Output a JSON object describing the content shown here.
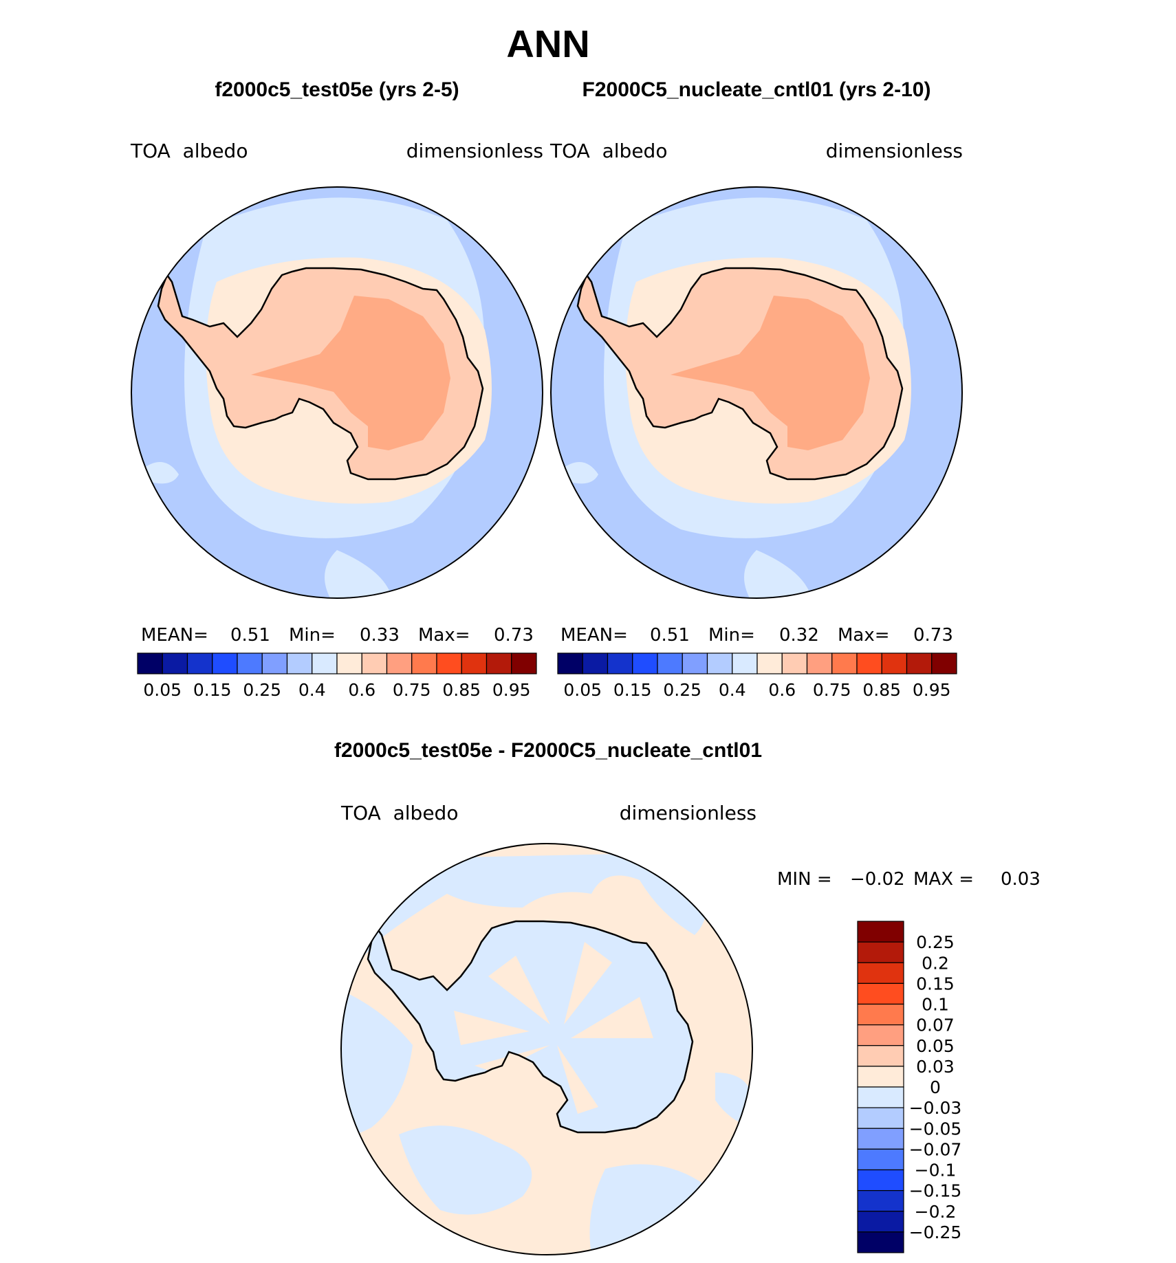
{
  "season": "ANN",
  "panels": [
    {
      "title": "f2000c5_test05e (yrs 2-5)",
      "variable": "TOA  albedo",
      "units": "dimensionless",
      "stats": {
        "mean_label": "MEAN=",
        "mean": "0.51",
        "min_label": "Min=",
        "min": "0.33",
        "max_label": "Max=",
        "max": "0.73"
      }
    },
    {
      "title": "F2000C5_nucleate_cntl01 (yrs 2-10)",
      "variable": "TOA  albedo",
      "units": "dimensionless",
      "stats": {
        "mean_label": "MEAN=",
        "mean": "0.51",
        "min_label": "Min=",
        "min": "0.32",
        "max_label": "Max=",
        "max": "0.73"
      }
    }
  ],
  "abs_colorbar": {
    "colors": [
      "#000066",
      "#0a1aa3",
      "#1433cc",
      "#1f4dff",
      "#4d7aff",
      "#809fff",
      "#b3ccff",
      "#d9eaff",
      "#ffebd9",
      "#ffccb3",
      "#ff9f80",
      "#ff7a4d",
      "#ff4d1f",
      "#e0330f",
      "#b31a0a",
      "#800000"
    ],
    "labels": [
      "0.05",
      "0.15",
      "0.25",
      "0.4",
      "0.6",
      "0.75",
      "0.85",
      "0.95"
    ]
  },
  "diff_panel": {
    "title": "f2000c5_test05e - F2000C5_nucleate_cntl01",
    "variable": "TOA  albedo",
    "units": "dimensionless",
    "stats": {
      "min_label": "MIN =",
      "min": "−0.02",
      "max_label": "MAX =",
      "max": "0.03"
    }
  },
  "diff_colorbar": {
    "colors": [
      "#800000",
      "#b31a0a",
      "#e0330f",
      "#ff4d1f",
      "#ff7a4d",
      "#ff9f80",
      "#ffccb3",
      "#ffebd9",
      "#d9eaff",
      "#b3ccff",
      "#809fff",
      "#4d7aff",
      "#1f4dff",
      "#1433cc",
      "#0a1aa3",
      "#000066"
    ],
    "labels": [
      "0.25",
      "0.2",
      "0.15",
      "0.1",
      "0.07",
      "0.05",
      "0.03",
      "0",
      "−0.03",
      "−0.05",
      "−0.07",
      "−0.1",
      "−0.15",
      "−0.2",
      "−0.25"
    ]
  }
}
